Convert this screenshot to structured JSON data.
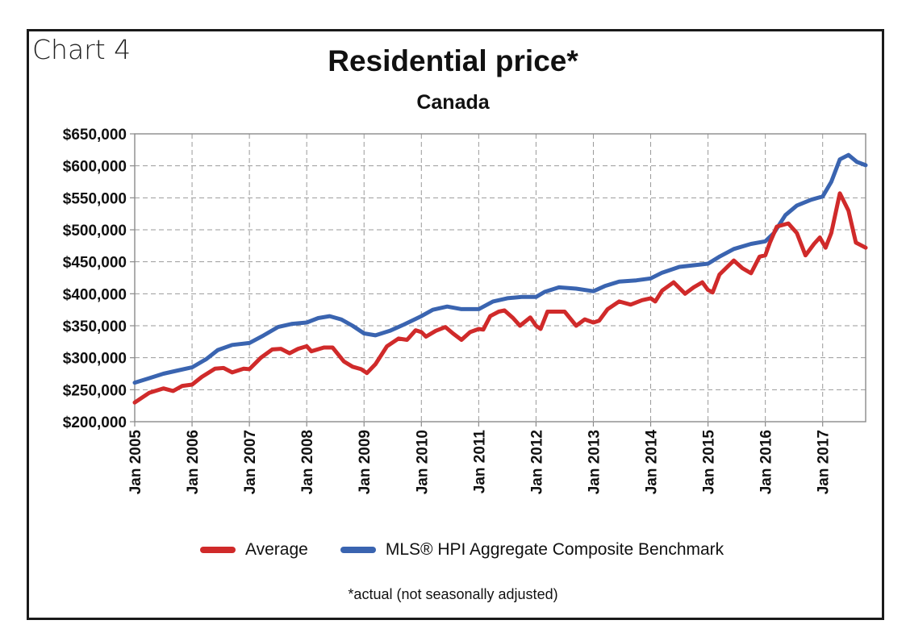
{
  "figure_label": "Chart 4",
  "footnote": "*actual (not seasonally adjusted)",
  "colors": {
    "average": "#d02a2a",
    "benchmark": "#3a64b0",
    "grid": "#9a9a9a",
    "axis": "#8a8a8a"
  },
  "chart_data": {
    "type": "line",
    "title": "Residential price*",
    "subtitle": "Canada",
    "xlabel": "",
    "ylabel": "",
    "x_unit": "year (decimal)",
    "xlim": [
      2005,
      2017.75
    ],
    "ylim": [
      200000,
      650000
    ],
    "yticks": [
      200000,
      250000,
      300000,
      350000,
      400000,
      450000,
      500000,
      550000,
      600000,
      650000
    ],
    "ytick_labels": [
      "$200,000",
      "$250,000",
      "$300,000",
      "$350,000",
      "$400,000",
      "$450,000",
      "$500,000",
      "$550,000",
      "$600,000",
      "$650,000"
    ],
    "xticks": [
      2005,
      2006,
      2007,
      2008,
      2009,
      2010,
      2011,
      2012,
      2013,
      2014,
      2015,
      2016,
      2017
    ],
    "xtick_labels": [
      "Jan 2005",
      "Jan 2006",
      "Jan 2007",
      "Jan 2008",
      "Jan 2009",
      "Jan 2010",
      "Jan 2011",
      "Jan 2012",
      "Jan 2013",
      "Jan 2014",
      "Jan 2015",
      "Jan 2016",
      "Jan 2017"
    ],
    "grid": true,
    "legend_position": "bottom",
    "series": [
      {
        "name": "Average",
        "color": "#d02a2a",
        "points": [
          [
            2005.0,
            230000
          ],
          [
            2005.25,
            245000
          ],
          [
            2005.5,
            252000
          ],
          [
            2005.67,
            248000
          ],
          [
            2005.83,
            256000
          ],
          [
            2006.0,
            258000
          ],
          [
            2006.17,
            270000
          ],
          [
            2006.4,
            283000
          ],
          [
            2006.55,
            284000
          ],
          [
            2006.7,
            277000
          ],
          [
            2006.9,
            283000
          ],
          [
            2007.0,
            282000
          ],
          [
            2007.2,
            300000
          ],
          [
            2007.4,
            313000
          ],
          [
            2007.55,
            314000
          ],
          [
            2007.7,
            307000
          ],
          [
            2007.85,
            314000
          ],
          [
            2008.0,
            318000
          ],
          [
            2008.08,
            310000
          ],
          [
            2008.3,
            316000
          ],
          [
            2008.45,
            316000
          ],
          [
            2008.65,
            294000
          ],
          [
            2008.8,
            286000
          ],
          [
            2008.95,
            282000
          ],
          [
            2009.05,
            276000
          ],
          [
            2009.2,
            290000
          ],
          [
            2009.4,
            318000
          ],
          [
            2009.6,
            330000
          ],
          [
            2009.75,
            328000
          ],
          [
            2009.9,
            343000
          ],
          [
            2010.0,
            340000
          ],
          [
            2010.08,
            333000
          ],
          [
            2010.25,
            342000
          ],
          [
            2010.42,
            348000
          ],
          [
            2010.55,
            338000
          ],
          [
            2010.7,
            328000
          ],
          [
            2010.85,
            340000
          ],
          [
            2011.0,
            345000
          ],
          [
            2011.08,
            344000
          ],
          [
            2011.2,
            365000
          ],
          [
            2011.35,
            372000
          ],
          [
            2011.45,
            374000
          ],
          [
            2011.6,
            362000
          ],
          [
            2011.72,
            350000
          ],
          [
            2011.9,
            363000
          ],
          [
            2012.0,
            350000
          ],
          [
            2012.08,
            345000
          ],
          [
            2012.2,
            372000
          ],
          [
            2012.35,
            372000
          ],
          [
            2012.5,
            372000
          ],
          [
            2012.7,
            350000
          ],
          [
            2012.85,
            360000
          ],
          [
            2013.0,
            355000
          ],
          [
            2013.1,
            358000
          ],
          [
            2013.25,
            376000
          ],
          [
            2013.45,
            388000
          ],
          [
            2013.65,
            383000
          ],
          [
            2013.85,
            390000
          ],
          [
            2014.0,
            393000
          ],
          [
            2014.08,
            388000
          ],
          [
            2014.2,
            405000
          ],
          [
            2014.4,
            418000
          ],
          [
            2014.6,
            400000
          ],
          [
            2014.75,
            410000
          ],
          [
            2014.9,
            418000
          ],
          [
            2015.0,
            406000
          ],
          [
            2015.08,
            402000
          ],
          [
            2015.2,
            430000
          ],
          [
            2015.45,
            452000
          ],
          [
            2015.6,
            440000
          ],
          [
            2015.75,
            432000
          ],
          [
            2015.9,
            458000
          ],
          [
            2016.0,
            460000
          ],
          [
            2016.08,
            480000
          ],
          [
            2016.2,
            505000
          ],
          [
            2016.4,
            510000
          ],
          [
            2016.55,
            495000
          ],
          [
            2016.7,
            460000
          ],
          [
            2016.85,
            478000
          ],
          [
            2016.95,
            488000
          ],
          [
            2017.05,
            472000
          ],
          [
            2017.15,
            495000
          ],
          [
            2017.3,
            557000
          ],
          [
            2017.45,
            530000
          ],
          [
            2017.58,
            480000
          ],
          [
            2017.75,
            472000
          ]
        ]
      },
      {
        "name": "MLS® HPI Aggregate Composite Benchmark",
        "color": "#3a64b0",
        "points": [
          [
            2005.0,
            261000
          ],
          [
            2005.25,
            268000
          ],
          [
            2005.5,
            275000
          ],
          [
            2005.75,
            280000
          ],
          [
            2006.0,
            285000
          ],
          [
            2006.25,
            298000
          ],
          [
            2006.45,
            312000
          ],
          [
            2006.7,
            320000
          ],
          [
            2007.0,
            323000
          ],
          [
            2007.25,
            335000
          ],
          [
            2007.5,
            348000
          ],
          [
            2007.75,
            353000
          ],
          [
            2008.0,
            355000
          ],
          [
            2008.2,
            362000
          ],
          [
            2008.4,
            365000
          ],
          [
            2008.6,
            360000
          ],
          [
            2008.8,
            350000
          ],
          [
            2009.0,
            338000
          ],
          [
            2009.2,
            335000
          ],
          [
            2009.45,
            342000
          ],
          [
            2009.7,
            352000
          ],
          [
            2010.0,
            365000
          ],
          [
            2010.2,
            375000
          ],
          [
            2010.45,
            380000
          ],
          [
            2010.7,
            376000
          ],
          [
            2011.0,
            376000
          ],
          [
            2011.25,
            388000
          ],
          [
            2011.5,
            393000
          ],
          [
            2011.75,
            395000
          ],
          [
            2012.0,
            395000
          ],
          [
            2012.15,
            403000
          ],
          [
            2012.4,
            410000
          ],
          [
            2012.7,
            408000
          ],
          [
            2013.0,
            404000
          ],
          [
            2013.2,
            412000
          ],
          [
            2013.45,
            419000
          ],
          [
            2013.75,
            421000
          ],
          [
            2014.0,
            424000
          ],
          [
            2014.2,
            433000
          ],
          [
            2014.5,
            442000
          ],
          [
            2014.8,
            445000
          ],
          [
            2015.0,
            447000
          ],
          [
            2015.2,
            458000
          ],
          [
            2015.45,
            470000
          ],
          [
            2015.75,
            478000
          ],
          [
            2016.0,
            482000
          ],
          [
            2016.15,
            495000
          ],
          [
            2016.35,
            523000
          ],
          [
            2016.55,
            538000
          ],
          [
            2016.8,
            547000
          ],
          [
            2017.0,
            552000
          ],
          [
            2017.15,
            575000
          ],
          [
            2017.3,
            610000
          ],
          [
            2017.45,
            617000
          ],
          [
            2017.6,
            606000
          ],
          [
            2017.75,
            601000
          ]
        ]
      }
    ]
  }
}
